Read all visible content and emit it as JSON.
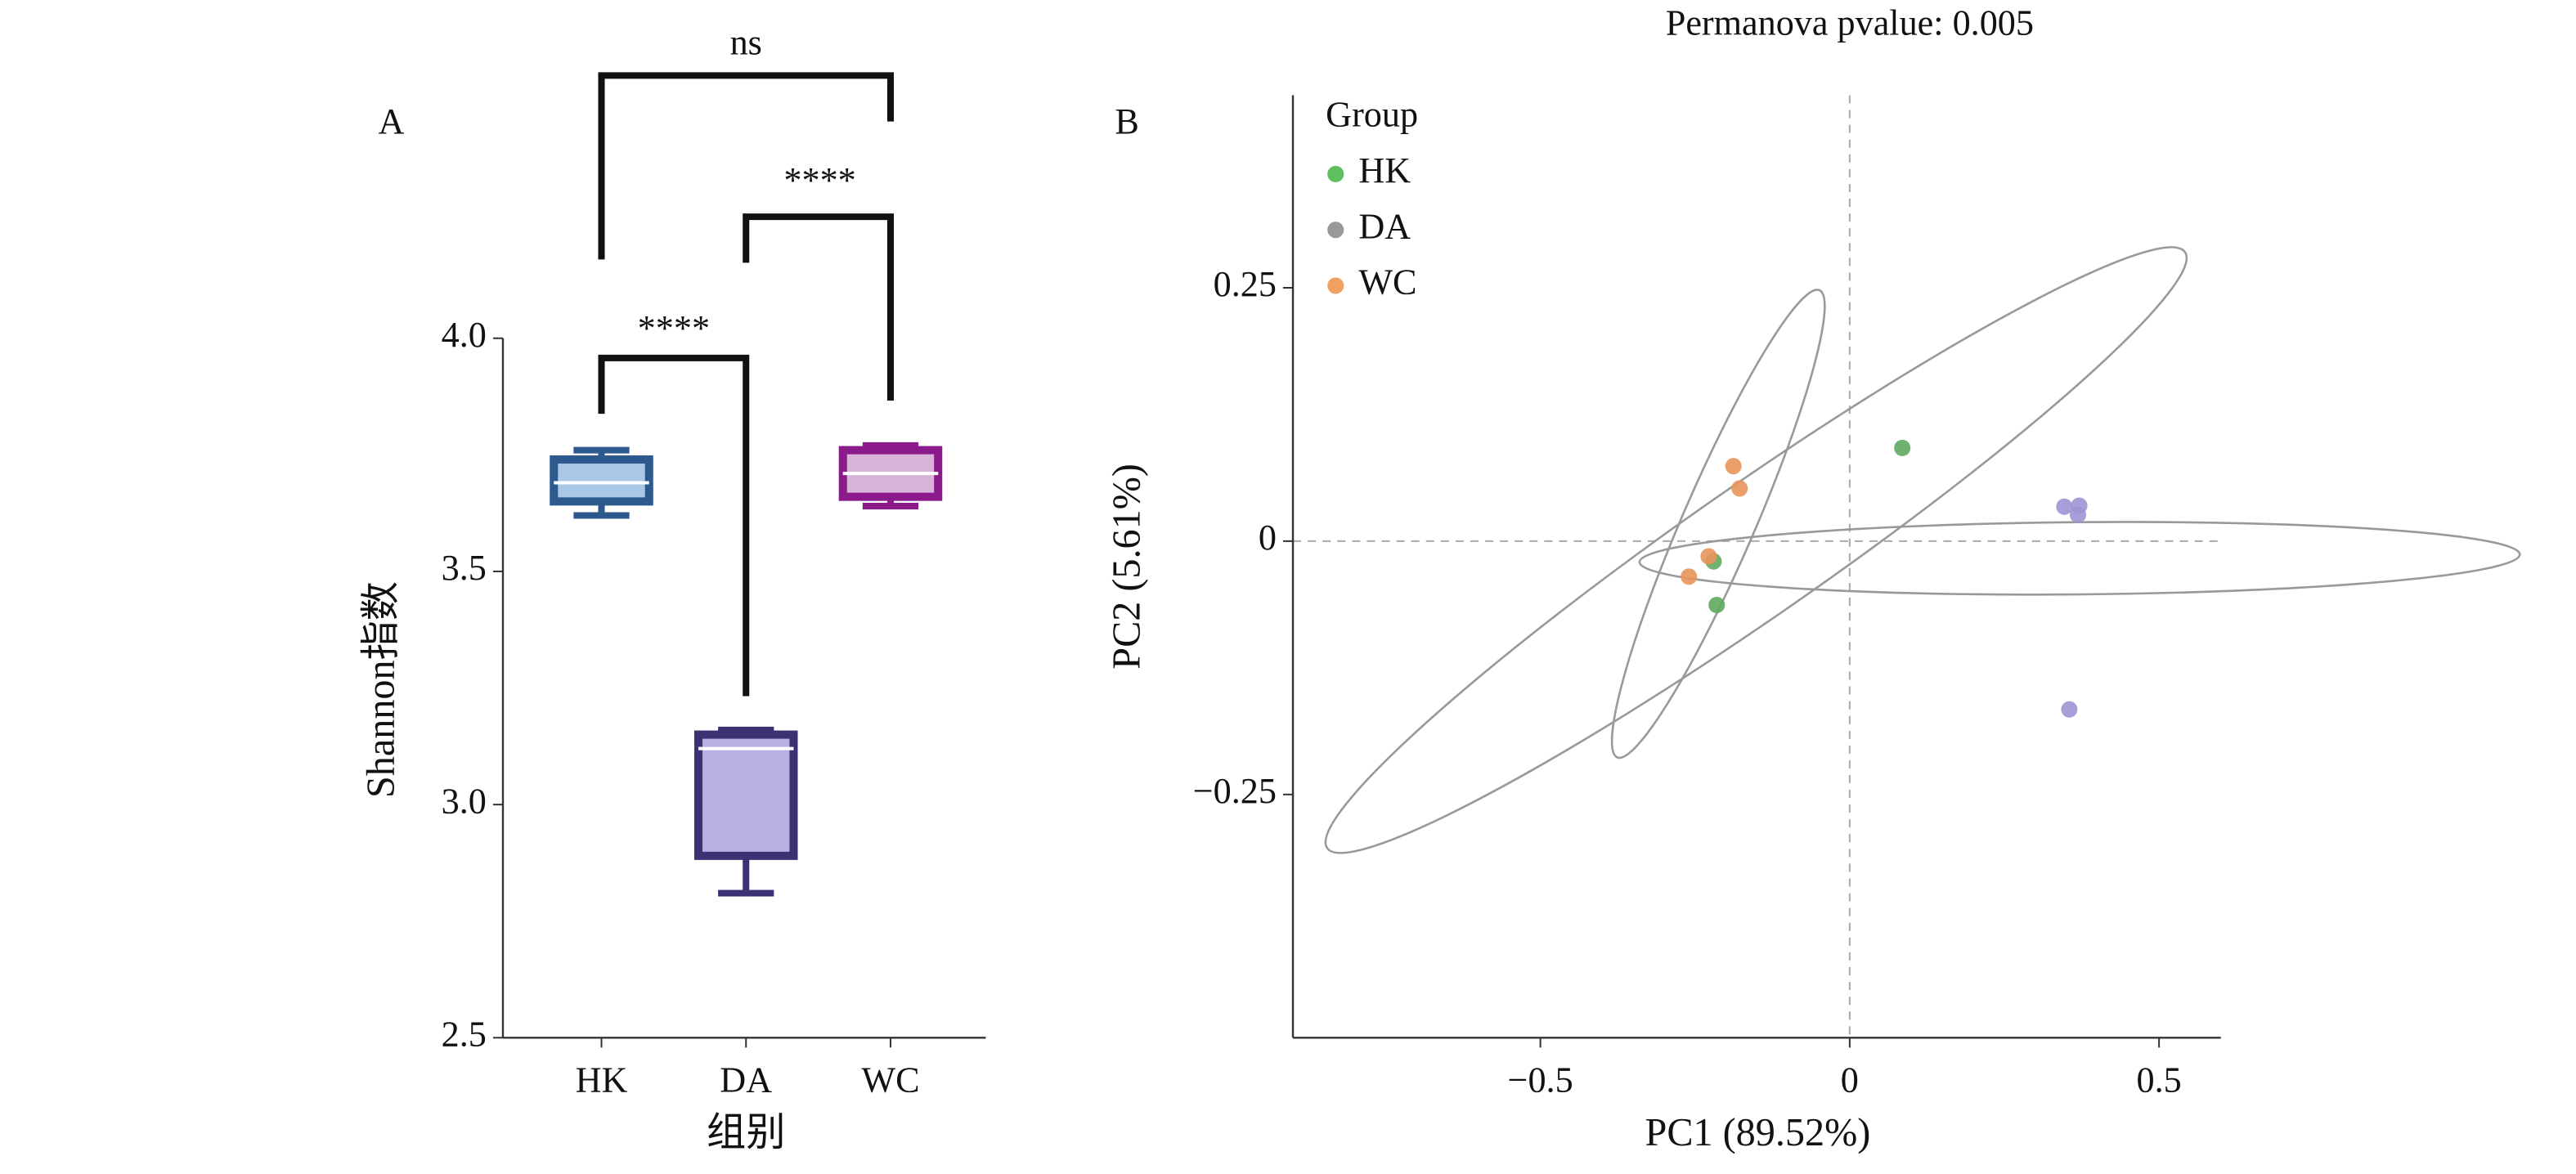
{
  "chart_data": [
    {
      "type": "box",
      "panel_label": "A",
      "xlabel": "组别",
      "ylabel": "Shannon指数",
      "categories": [
        "HK",
        "DA",
        "WC"
      ],
      "boxes": [
        {
          "min": 3.62,
          "q1": 3.65,
          "median": 3.69,
          "q3": 3.74,
          "max": 3.76,
          "color": "#a9c8e8",
          "edge_color": "#2d5a8e"
        },
        {
          "min": 2.81,
          "q1": 2.89,
          "median": 3.12,
          "q3": 3.15,
          "max": 3.16,
          "color": "#b7b0e0",
          "edge_color": "#3b3173"
        },
        {
          "min": 3.64,
          "q1": 3.66,
          "median": 3.71,
          "q3": 3.76,
          "max": 3.77,
          "color": "#d8b3d8",
          "edge_color": "#8b1a8b"
        }
      ],
      "significance": [
        "ns",
        "****",
        "****"
      ],
      "ylim": [
        2.5,
        4.0
      ],
      "yticks": [
        2.5,
        {
          "value": 3,
          "label": "3.0"
        },
        3.5,
        {
          "value": 4,
          "label": "4.0"
        }
      ]
    },
    {
      "type": "scatter",
      "panel_label": "B",
      "title": "Permanova pvalue: 0.005",
      "xlabel": "PC1 (89.52%)",
      "ylabel": "PC2 (5.61%)",
      "legend_title": "Group",
      "legend": "upper left",
      "series": [
        {
          "name": "HK",
          "color": "#5fa85f",
          "legend_color": "#5fbf5f",
          "x": [
            0.085,
            -0.215,
            -0.22
          ],
          "y": [
            0.092,
            -0.063,
            -0.02
          ]
        },
        {
          "name": "DA",
          "color": "#9e94d4",
          "legend_color": "#999999",
          "x": [
            0.347,
            0.371,
            0.369,
            0.355
          ],
          "y": [
            0.034,
            0.035,
            0.026,
            -0.166
          ]
        },
        {
          "name": "WC",
          "color": "#e8955a",
          "legend_color": "#f0a060",
          "x": [
            -0.188,
            -0.178,
            -0.228,
            -0.26
          ],
          "y": [
            0.074,
            0.052,
            -0.015,
            -0.035
          ]
        }
      ],
      "xlim": [
        -0.9,
        0.6
      ],
      "ylim": [
        -0.49,
        0.44
      ],
      "xticks": [
        {
          "value": -0.5,
          "label": "−0.5"
        },
        0,
        0.5
      ],
      "yticks": [
        {
          "value": -0.25,
          "label": "−0.25"
        },
        0,
        0.25
      ]
    }
  ]
}
